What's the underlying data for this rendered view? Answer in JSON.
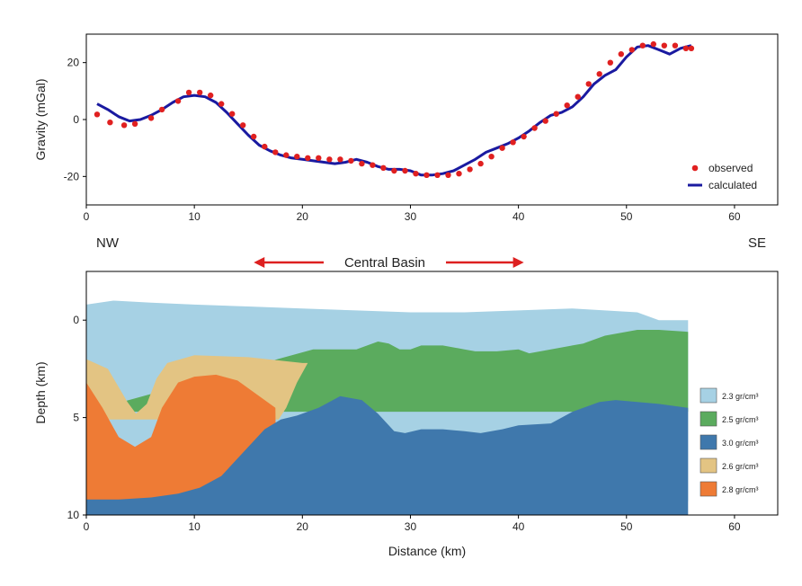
{
  "chart_data": [
    {
      "type": "scatter+line",
      "xlabel": "",
      "ylabel": "Gravity (mGal)",
      "xlim": [
        0,
        64
      ],
      "ylim": [
        -30,
        30
      ],
      "xticks": [
        "0",
        "10",
        "20",
        "30",
        "40",
        "50",
        "60"
      ],
      "yticks": [
        "20",
        "0",
        "-20"
      ],
      "legend_position": "bottom-right",
      "series": [
        {
          "name": "observed",
          "kind": "points",
          "color": "#e02020",
          "x": [
            1,
            2.2,
            3.5,
            4.5,
            6,
            7,
            8.5,
            9.5,
            10.5,
            11.5,
            12.5,
            13.5,
            14.5,
            15.5,
            16.5,
            17.5,
            18.5,
            19.5,
            20.5,
            21.5,
            22.5,
            23.5,
            24.5,
            25.5,
            26.5,
            27.5,
            28.5,
            29.5,
            30.5,
            31.5,
            32.5,
            33.5,
            34.5,
            35.5,
            36.5,
            37.5,
            38.5,
            39.5,
            40.5,
            41.5,
            42.5,
            43.5,
            44.5,
            45.5,
            46.5,
            47.5,
            48.5,
            49.5,
            50.5,
            51.5,
            52.5,
            53.5,
            54.5,
            55.5,
            56
          ],
          "y": [
            1.8,
            -1,
            -2,
            -1.5,
            0.5,
            3.5,
            6.5,
            9.5,
            9.5,
            8.5,
            5.5,
            2,
            -2,
            -6,
            -9.5,
            -11.5,
            -12.5,
            -13,
            -13.5,
            -13.5,
            -14,
            -14,
            -14.5,
            -15.5,
            -16,
            -17,
            -18,
            -18,
            -19,
            -19.5,
            -19.5,
            -19.5,
            -19,
            -17.5,
            -15.5,
            -13,
            -10,
            -8,
            -6,
            -3,
            -0.5,
            2,
            5,
            8,
            12.5,
            16,
            20,
            23,
            24.5,
            26,
            26.5,
            26,
            26,
            25,
            25
          ]
        },
        {
          "name": "calculated",
          "kind": "line",
          "color": "#1a1aa0",
          "x": [
            1,
            2,
            3,
            4,
            5,
            6,
            7,
            8,
            9,
            10,
            11,
            12,
            13,
            14,
            15,
            16,
            17,
            18,
            19,
            20,
            21,
            22,
            23,
            24,
            25,
            26,
            27,
            28,
            29,
            30,
            31,
            32,
            33,
            34,
            35,
            36,
            37,
            38,
            39,
            40,
            41,
            42,
            43,
            44,
            45,
            46,
            47,
            48,
            49,
            50,
            51,
            52,
            53,
            54,
            55,
            56
          ],
          "y": [
            5.5,
            3.5,
            1,
            -0.5,
            0,
            1.5,
            3.5,
            6,
            8,
            8.5,
            8,
            6,
            2.5,
            -1.5,
            -5.5,
            -9,
            -11,
            -12.5,
            -13.5,
            -14,
            -14.5,
            -15,
            -15.5,
            -15,
            -14,
            -15,
            -16.5,
            -17.5,
            -17.5,
            -18,
            -19.5,
            -19.5,
            -19,
            -18,
            -16,
            -14,
            -11.5,
            -10,
            -8.5,
            -6.5,
            -4,
            -1,
            1.5,
            2.5,
            4.5,
            8,
            12.5,
            15.5,
            17.5,
            22,
            25.5,
            26,
            24.5,
            23,
            25,
            26
          ]
        }
      ]
    },
    {
      "type": "area",
      "xlabel": "Distance (km)",
      "ylabel": "Depth (km)",
      "xlim": [
        0,
        64
      ],
      "ylim": [
        10,
        -2.5
      ],
      "xticks": [
        "0",
        "10",
        "20",
        "30",
        "40",
        "50",
        "60"
      ],
      "yticks": [
        "0",
        "5",
        "10"
      ],
      "legend_position": "right",
      "layers": [
        {
          "name": "2.3 gr/cm³",
          "color": "#a6d1e4",
          "polygon": [
            [
              0,
              -0.8
            ],
            [
              2.5,
              -1
            ],
            [
              6,
              -0.9
            ],
            [
              10,
              -0.8
            ],
            [
              15,
              -0.7
            ],
            [
              20,
              -0.6
            ],
            [
              25,
              -0.5
            ],
            [
              30,
              -0.4
            ],
            [
              35,
              -0.4
            ],
            [
              40,
              -0.5
            ],
            [
              45,
              -0.6
            ],
            [
              48,
              -0.5
            ],
            [
              51,
              -0.4
            ],
            [
              53,
              0
            ],
            [
              55.7,
              0
            ],
            [
              55.7,
              9.3
            ],
            [
              0,
              9.3
            ]
          ]
        },
        {
          "name": "2.5 gr/cm³",
          "color": "#5bab5e",
          "polygon": [
            [
              21,
              1.5
            ],
            [
              23,
              1.5
            ],
            [
              25,
              1.5
            ],
            [
              27,
              1.1
            ],
            [
              28,
              1.2
            ],
            [
              29,
              1.5
            ],
            [
              30,
              1.5
            ],
            [
              31,
              1.3
            ],
            [
              33,
              1.3
            ],
            [
              35,
              1.5
            ],
            [
              36,
              1.6
            ],
            [
              38,
              1.6
            ],
            [
              40,
              1.5
            ],
            [
              41,
              1.7
            ],
            [
              43,
              1.5
            ],
            [
              46,
              1.2
            ],
            [
              48,
              0.8
            ],
            [
              51,
              0.5
            ],
            [
              53,
              0.5
            ],
            [
              55.7,
              0.6
            ],
            [
              55.7,
              4.7
            ],
            [
              0,
              4.7
            ]
          ]
        },
        {
          "name": "2.6 gr/cm³",
          "color": "#e3c483",
          "polygon": [
            [
              0,
              2
            ],
            [
              2,
              2.5
            ],
            [
              3.8,
              4.2
            ],
            [
              4.6,
              4.8
            ],
            [
              5.6,
              4.3
            ],
            [
              6.5,
              3
            ],
            [
              7.5,
              2.2
            ],
            [
              10,
              1.8
            ],
            [
              15,
              1.9
            ],
            [
              20,
              2.2
            ],
            [
              20.5,
              2.2
            ],
            [
              19.5,
              3.2
            ],
            [
              18.5,
              4.5
            ],
            [
              17.8,
              5.1
            ],
            [
              0,
              5.1
            ]
          ]
        },
        {
          "name": "2.8 gr/cm³",
          "color": "#ee7b35",
          "polygon": [
            [
              0,
              3.2
            ],
            [
              1.5,
              4.5
            ],
            [
              3,
              6
            ],
            [
              4.5,
              6.5
            ],
            [
              6,
              6
            ],
            [
              7,
              4.5
            ],
            [
              8.5,
              3.2
            ],
            [
              10,
              2.9
            ],
            [
              12,
              2.8
            ],
            [
              14,
              3.1
            ],
            [
              16,
              3.9
            ],
            [
              17.5,
              4.5
            ],
            [
              17.6,
              9.3
            ],
            [
              0,
              9.3
            ]
          ]
        },
        {
          "name": "3.0 gr/cm³",
          "color": "#3f78ac",
          "polygon": [
            [
              0,
              9.2
            ],
            [
              3,
              9.2
            ],
            [
              6,
              9.1
            ],
            [
              8.5,
              8.9
            ],
            [
              10.5,
              8.6
            ],
            [
              12.5,
              8
            ],
            [
              14.5,
              6.8
            ],
            [
              16.5,
              5.6
            ],
            [
              18,
              5.1
            ],
            [
              19.5,
              4.9
            ],
            [
              21.5,
              4.5
            ],
            [
              23.5,
              3.9
            ],
            [
              25.5,
              4.1
            ],
            [
              27,
              4.8
            ],
            [
              28.5,
              5.7
            ],
            [
              29.5,
              5.8
            ],
            [
              31,
              5.6
            ],
            [
              33,
              5.6
            ],
            [
              35,
              5.7
            ],
            [
              36.5,
              5.8
            ],
            [
              38.5,
              5.6
            ],
            [
              40,
              5.4
            ],
            [
              43,
              5.3
            ],
            [
              45,
              4.7
            ],
            [
              47.5,
              4.2
            ],
            [
              49,
              4.1
            ],
            [
              51,
              4.2
            ],
            [
              53,
              4.3
            ],
            [
              55.7,
              4.5
            ],
            [
              55.7,
              10
            ],
            [
              0,
              10
            ]
          ]
        }
      ],
      "legend_entries": [
        "2.3 gr/cm³",
        "2.5 gr/cm³",
        "3.0 gr/cm³",
        "2.6 gr/cm³",
        "2.8 gr/cm³"
      ],
      "annotations": {
        "left": "NW",
        "right": "SE",
        "basin_label": "Central Basin",
        "basin_range": [
          15.5,
          40.5
        ],
        "arrow_color": "#dd2020"
      }
    }
  ]
}
